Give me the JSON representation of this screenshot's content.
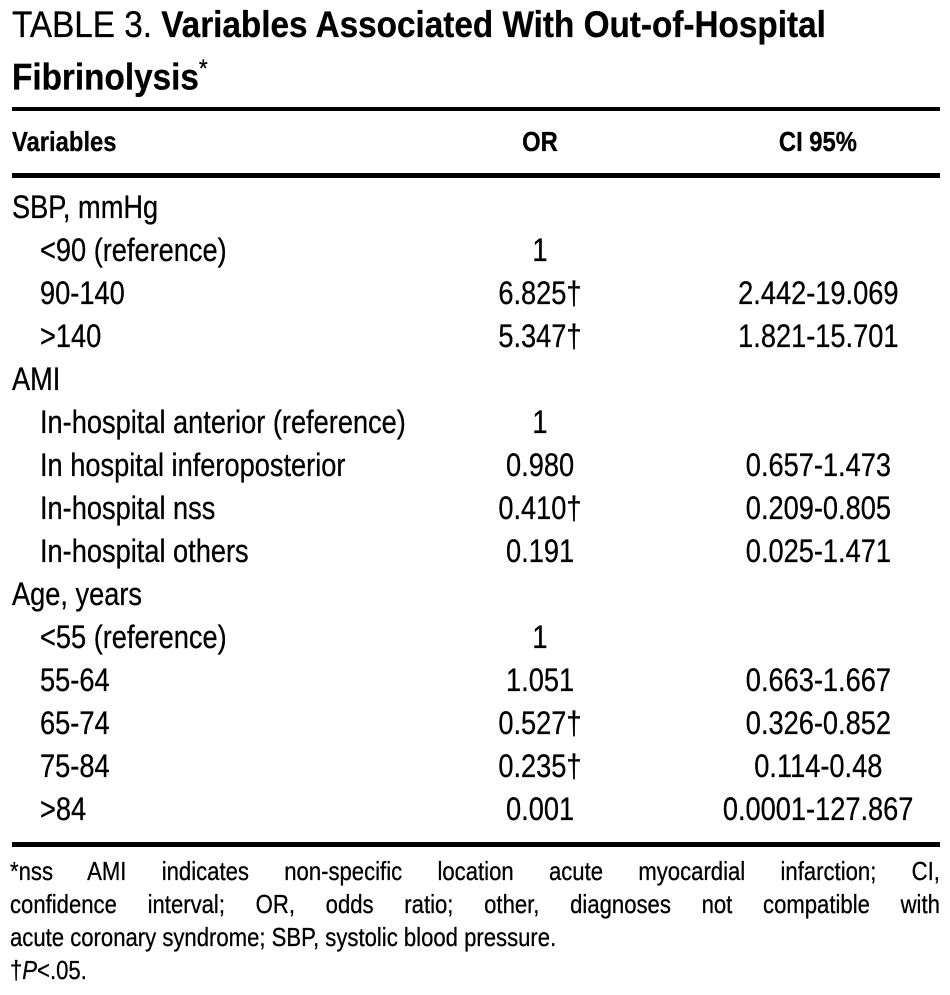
{
  "title": {
    "prefix": "TABLE 3.",
    "line1_rest": " Variables Associated With Out-of-Hospital",
    "line2_main": "Fibrinolysis",
    "asterisk": "*"
  },
  "table": {
    "columns": [
      "Variables",
      "OR",
      "CI 95%"
    ],
    "rows": [
      {
        "label": "SBP, mmHg",
        "or": "",
        "ci": "",
        "indent": false
      },
      {
        "label": "<90 (reference)",
        "or": "1",
        "ci": "",
        "indent": true
      },
      {
        "label": "90-140",
        "or": "6.825†",
        "ci": "2.442-19.069",
        "indent": true
      },
      {
        "label": ">140",
        "or": "5.347†",
        "ci": "1.821-15.701",
        "indent": true
      },
      {
        "label": "AMI",
        "or": "",
        "ci": "",
        "indent": false
      },
      {
        "label": "In-hospital anterior (reference)",
        "or": "1",
        "ci": "",
        "indent": true
      },
      {
        "label": "In hospital inferoposterior",
        "or": "0.980",
        "ci": "0.657-1.473",
        "indent": true
      },
      {
        "label": "In-hospital nss",
        "or": "0.410†",
        "ci": "0.209-0.805",
        "indent": true
      },
      {
        "label": "In-hospital others",
        "or": "0.191",
        "ci": "0.025-1.471",
        "indent": true
      },
      {
        "label": "Age, years",
        "or": "",
        "ci": "",
        "indent": false
      },
      {
        "label": "<55 (reference)",
        "or": "1",
        "ci": "",
        "indent": true
      },
      {
        "label": "55-64",
        "or": "1.051",
        "ci": "0.663-1.667",
        "indent": true
      },
      {
        "label": "65-74",
        "or": "0.527†",
        "ci": "0.326-0.852",
        "indent": true
      },
      {
        "label": "75-84",
        "or": "0.235†",
        "ci": "0.114-0.48",
        "indent": true
      },
      {
        "label": ">84",
        "or": "0.001",
        "ci": "0.0001-127.867",
        "indent": true
      }
    ]
  },
  "footnote": {
    "lines": [
      "*nss AMI indicates non-specific location acute myocardial infarction; CI,",
      "confidence interval; OR, odds ratio; other, diagnoses not compatible with",
      "acute coronary syndrome; SBP, systolic blood pressure."
    ],
    "sig_dagger": "†",
    "sig_p": "P",
    "sig_rest": "<.05."
  },
  "colors": {
    "text": "#000000",
    "background": "#ffffff",
    "rule": "#000000"
  }
}
